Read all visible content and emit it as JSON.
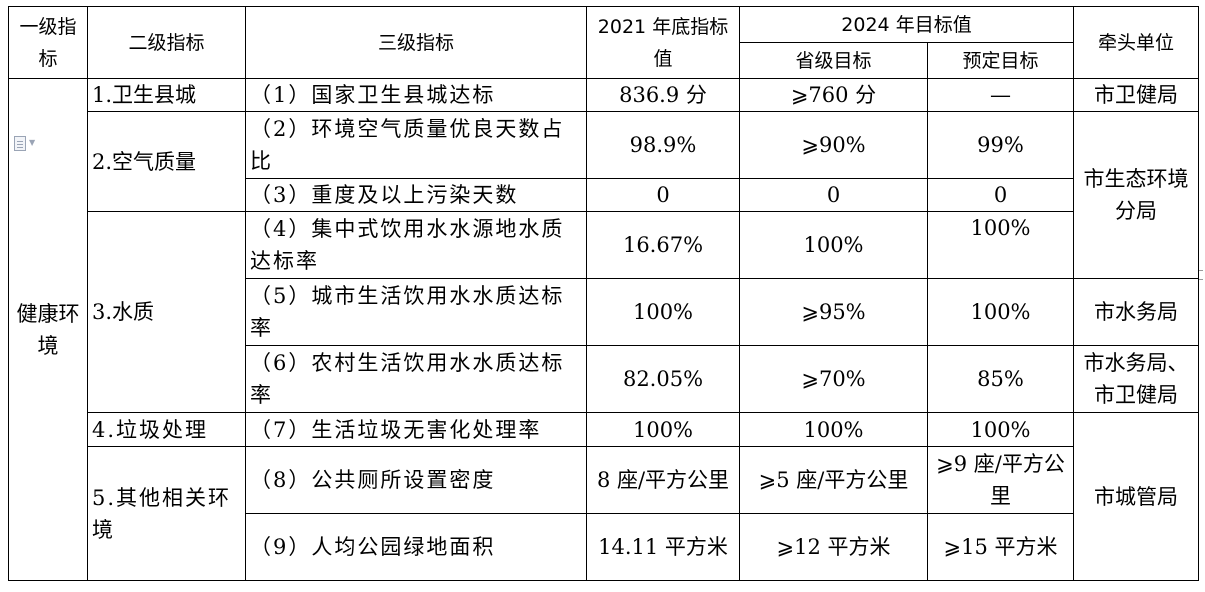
{
  "header": {
    "level1": "一级指标",
    "level2": "二级指标",
    "level3": "三级指标",
    "baseline": "2021 年底指标值",
    "target_group": "2024 年目标值",
    "provincial_target": "省级目标",
    "planned_target": "预定目标",
    "lead_unit": "牵头单位"
  },
  "level1_indicator": "健康环境",
  "rows": [
    {
      "level2": "1.卫生县城",
      "level3": "（1）国家卫生县城达标",
      "baseline": "836.9 分",
      "provincial": "⩾760 分",
      "planned": "—",
      "unit": "市卫健局"
    },
    {
      "level2": "2.空气质量",
      "level3": "（2）环境空气质量优良天数占比",
      "baseline": "98.9%",
      "provincial": "⩾90%",
      "planned": "99%",
      "unit": "市生态环境分局"
    },
    {
      "level3": "（3）重度及以上污染天数",
      "baseline": "0",
      "provincial": "0",
      "planned": "0"
    },
    {
      "level2": "3.水质",
      "level3": "（4）集中式饮用水水源地水质达标率",
      "baseline": "16.67%",
      "provincial": "100%",
      "planned": "100%"
    },
    {
      "level3": "（5）城市生活饮用水水质达标率",
      "baseline": "100%",
      "provincial": "⩾95%",
      "planned": "100%",
      "unit": "市水务局"
    },
    {
      "level3": "（6）农村生活饮用水水质达标率",
      "baseline": "82.05%",
      "provincial": "⩾70%",
      "planned": "85%",
      "unit": "市水务局、市卫健局"
    },
    {
      "level2": "4.垃圾处理",
      "level3": "（7）生活垃圾无害化处理率",
      "baseline": "100%",
      "provincial": "100%",
      "planned": "100%",
      "unit": "市城管局"
    },
    {
      "level2": "5.其他相关环境",
      "level3": "（8）公共厕所设置密度",
      "baseline": "8 座/平方公里",
      "provincial": "⩾5 座/平方公里",
      "planned": "⩾9 座/平方公里"
    },
    {
      "level3": "（9）人均公园绿地面积",
      "baseline": "14.11 平方米",
      "provincial": "⩾12 平方米",
      "planned": "⩾15 平方米"
    }
  ],
  "icons": {
    "doc": "document-icon",
    "caret": "chevron-down-icon"
  }
}
